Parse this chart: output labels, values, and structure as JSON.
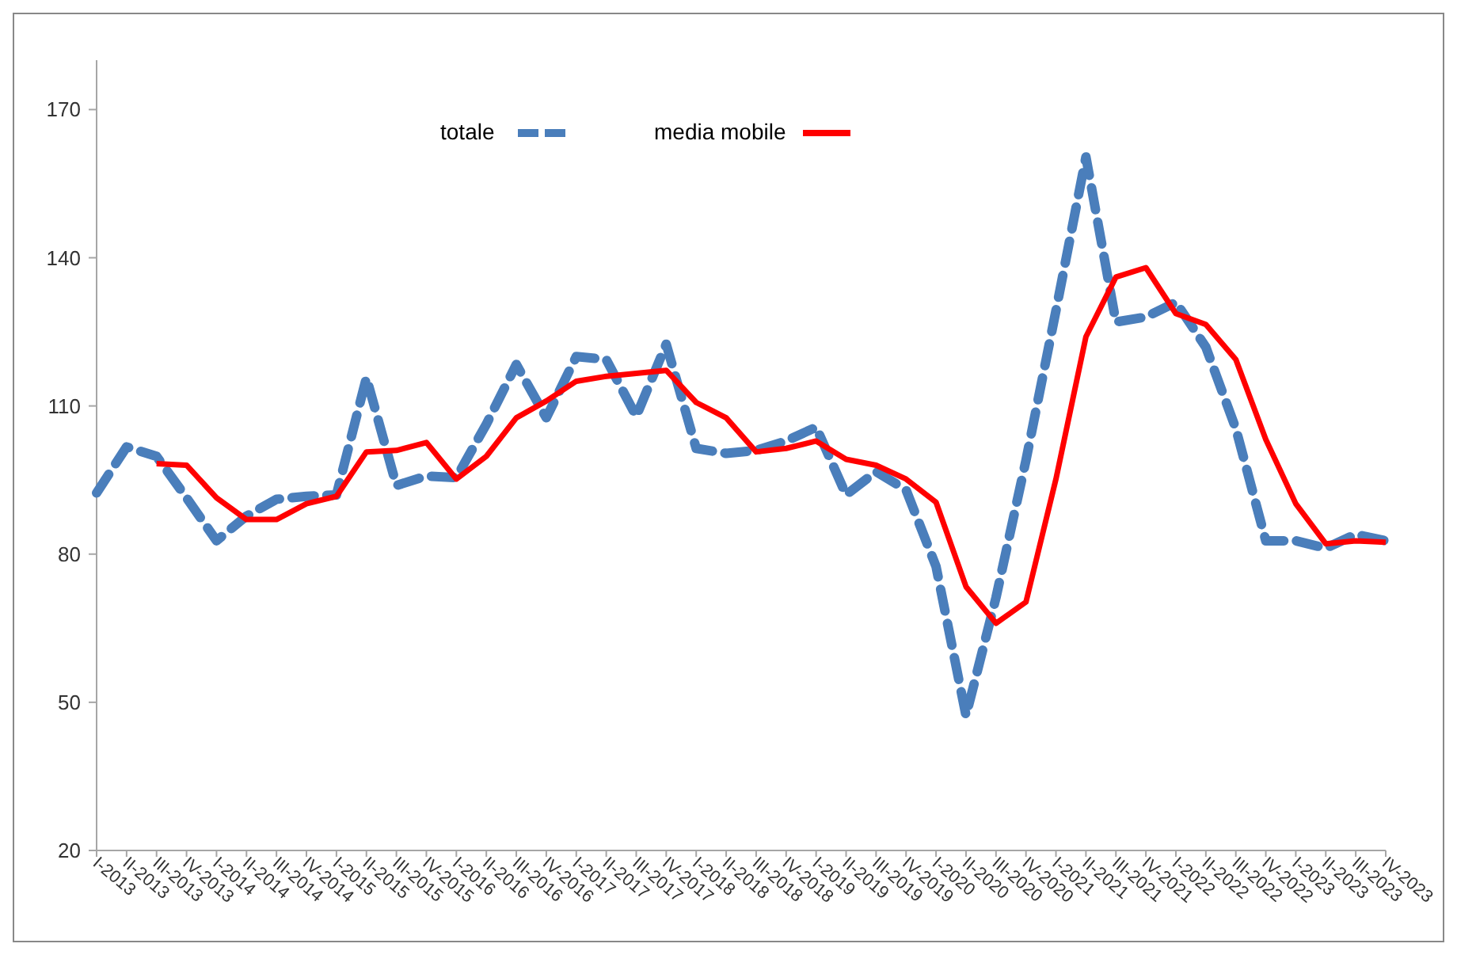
{
  "chart_data": {
    "type": "line",
    "categories": [
      "I-2013",
      "II-2013",
      "III-2013",
      "IV-2013",
      "I-2014",
      "II-2014",
      "III-2014",
      "IV-2014",
      "I-2015",
      "II-2015",
      "III-2015",
      "IV-2015",
      "I-2016",
      "II-2016",
      "III-2016",
      "IV-2016",
      "I-2017",
      "II-2017",
      "III-2017",
      "IV-2017",
      "I-2018",
      "II-2018",
      "III-2018",
      "IV-2018",
      "I-2019",
      "II-2019",
      "III-2019",
      "IV-2019",
      "I-2020",
      "II-2020",
      "III-2020",
      "IV-2020",
      "I-2021",
      "II-2021",
      "III-2021",
      "IV-2021",
      "I-2022",
      "II-2022",
      "III-2022",
      "IV-2022",
      "I-2023",
      "II-2023",
      "III-2023",
      "IV-2023"
    ],
    "series": [
      {
        "name": "totale",
        "color": "#4a7ebb",
        "line_style": "dashed",
        "values": [
          92.4,
          101.7,
          99.8,
          91.4,
          82.7,
          87.7,
          91.1,
          91.7,
          92,
          115.7,
          93.9,
          95.8,
          95.5,
          106.3,
          118.4,
          107.6,
          120,
          119.4,
          107.9,
          122.5,
          101.4,
          100.4,
          101,
          102.9,
          105.7,
          92,
          96.7,
          93,
          77.5,
          47.3,
          71.2,
          99,
          129.3,
          160.4,
          127,
          128,
          131,
          121.9,
          105.4,
          82.7,
          82.7,
          81.2,
          84,
          82.7
        ]
      },
      {
        "name": "media mobile",
        "color": "#ff0000",
        "line_style": "solid",
        "values": [
          null,
          null,
          98.3,
          98,
          91.4,
          87,
          87,
          90.2,
          91.7,
          100.7,
          101,
          102.6,
          95.2,
          99.8,
          107.6,
          111,
          115,
          116,
          116.6,
          117.2,
          110.7,
          107.6,
          100.7,
          101.4,
          102.9,
          99.2,
          98,
          95.2,
          90.5,
          73.4,
          66,
          70.3,
          95.2,
          124,
          136.1,
          138,
          128.7,
          126.5,
          119.4,
          103.2,
          90.2,
          82.1,
          82.7,
          82.4
        ]
      }
    ],
    "ylim": [
      20,
      180
    ],
    "yticks": [
      20,
      50,
      80,
      110,
      140,
      170
    ],
    "grid": false,
    "legend": "top",
    "marker": "none"
  }
}
